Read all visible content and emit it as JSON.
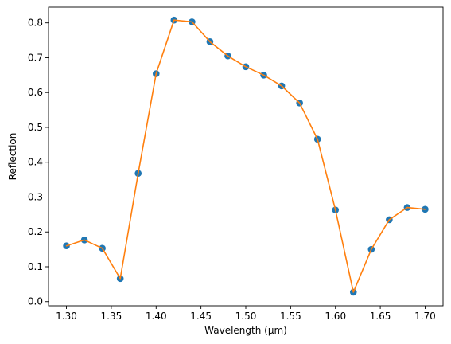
{
  "chart_data": {
    "type": "line",
    "title": "",
    "xlabel": "Wavelength (µm)",
    "ylabel": "Reflection",
    "xlim": [
      1.28,
      1.72
    ],
    "ylim": [
      -0.012,
      0.845
    ],
    "grid": false,
    "legend": "none",
    "x_ticks": [
      1.3,
      1.35,
      1.4,
      1.45,
      1.5,
      1.55,
      1.6,
      1.65,
      1.7
    ],
    "x_tick_labels": [
      "1.30",
      "1.35",
      "1.40",
      "1.45",
      "1.50",
      "1.55",
      "1.60",
      "1.65",
      "1.70"
    ],
    "y_ticks": [
      0.0,
      0.1,
      0.2,
      0.3,
      0.4,
      0.5,
      0.6,
      0.7,
      0.8
    ],
    "y_tick_labels": [
      "0.0",
      "0.1",
      "0.2",
      "0.3",
      "0.4",
      "0.5",
      "0.6",
      "0.7",
      "0.8"
    ],
    "x": [
      1.3,
      1.32,
      1.34,
      1.36,
      1.38,
      1.4,
      1.42,
      1.44,
      1.46,
      1.48,
      1.5,
      1.52,
      1.54,
      1.56,
      1.58,
      1.6,
      1.62,
      1.64,
      1.66,
      1.68,
      1.7
    ],
    "series": [
      {
        "style": "scatter",
        "color": "#1f77b4",
        "values": [
          0.16,
          0.177,
          0.153,
          0.066,
          0.368,
          0.654,
          0.808,
          0.803,
          0.746,
          0.705,
          0.674,
          0.65,
          0.619,
          0.57,
          0.466,
          0.263,
          0.027,
          0.15,
          0.235,
          0.27,
          0.265
        ]
      },
      {
        "style": "line",
        "color": "#ff7f0e",
        "values": [
          0.16,
          0.177,
          0.153,
          0.066,
          0.368,
          0.654,
          0.808,
          0.803,
          0.746,
          0.705,
          0.674,
          0.65,
          0.619,
          0.57,
          0.466,
          0.263,
          0.027,
          0.15,
          0.235,
          0.27,
          0.265
        ]
      }
    ]
  }
}
